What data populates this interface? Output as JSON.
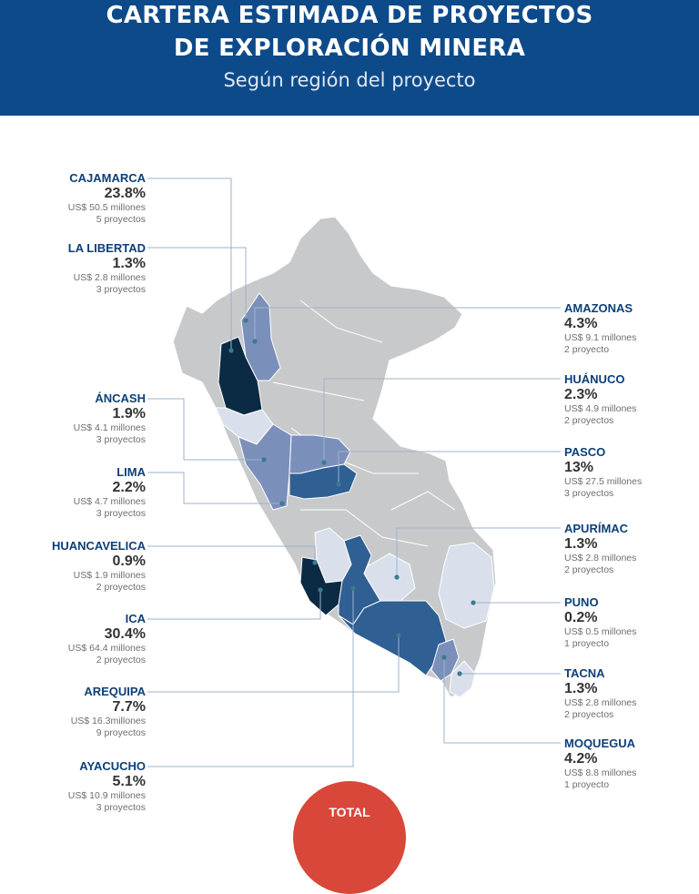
{
  "header": {
    "title_line1": "CARTERA ESTIMADA DE PROYECTOS",
    "title_line2": "DE EXPLORACIÓN MINERA",
    "subtitle": "Según región del proyecto"
  },
  "colors": {
    "header_bg": "#0d4a8a",
    "region_label": "#0d3f78",
    "map_gray": "#c8c9cb",
    "map_light": "#d9e0ec",
    "map_mid": "#7b8fbb",
    "map_dark": "#2f5f93",
    "map_darkest": "#0b2a44",
    "total_badge": "#d9473a"
  },
  "chart_data": {
    "type": "map",
    "regions": [
      {
        "name": "CAJAMARCA",
        "pct": "23.8%",
        "amount": "US$ 50.5 millones",
        "projects": "5 proyectos"
      },
      {
        "name": "LA LIBERTAD",
        "pct": "1.3%",
        "amount": "US$ 2.8 millones",
        "projects": "3 proyectos"
      },
      {
        "name": "ÁNCASH",
        "pct": "1.9%",
        "amount": "US$ 4.1 millones",
        "projects": "3 proyectos"
      },
      {
        "name": "LIMA",
        "pct": "2.2%",
        "amount": "US$ 4.7 millones",
        "projects": "3 proyectos"
      },
      {
        "name": "HUANCAVELICA",
        "pct": "0.9%",
        "amount": "US$ 1.9 millones",
        "projects": "2 proyectos"
      },
      {
        "name": "ICA",
        "pct": "30.4%",
        "amount": "US$ 64.4 millones",
        "projects": "2 proyectos"
      },
      {
        "name": "AREQUIPA",
        "pct": "7.7%",
        "amount": "US$ 16.3millones",
        "projects": "9 proyectos"
      },
      {
        "name": "AYACUCHO",
        "pct": "5.1%",
        "amount": "US$ 10.9 millones",
        "projects": "3 proyectos"
      },
      {
        "name": "AMAZONAS",
        "pct": "4.3%",
        "amount": "US$ 9.1 millones",
        "projects": "2 proyecto"
      },
      {
        "name": "HUÁNUCO",
        "pct": "2.3%",
        "amount": "US$ 4.9 millones",
        "projects": "2 proyectos"
      },
      {
        "name": "PASCO",
        "pct": "13%",
        "amount": "US$ 27.5 millones",
        "projects": "3 proyectos"
      },
      {
        "name": "APURÍMAC",
        "pct": "1.3%",
        "amount": "US$ 2.8 millones",
        "projects": "2 proyectos"
      },
      {
        "name": "PUNO",
        "pct": "0.2%",
        "amount": "US$ 0.5 millones",
        "projects": "1 proyecto"
      },
      {
        "name": "TACNA",
        "pct": "1.3%",
        "amount": "US$ 2.8 millones",
        "projects": "2 proyectos"
      },
      {
        "name": "MOQUEGUA",
        "pct": "4.2%",
        "amount": "US$ 8.8 millones",
        "projects": "1 proyecto"
      }
    ]
  },
  "total": {
    "label": "TOTAL"
  }
}
